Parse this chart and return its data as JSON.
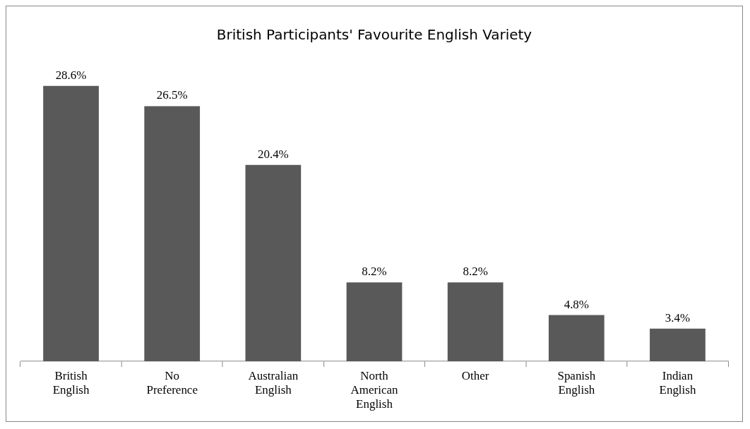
{
  "chart_data": {
    "type": "bar",
    "title": "British Participants' Favourite English Variety",
    "categories": [
      "British English",
      "No Preference",
      "Australian English",
      "North American English",
      "Other",
      "Spanish English",
      "Indian English"
    ],
    "values": [
      28.6,
      26.5,
      20.4,
      8.2,
      8.2,
      4.8,
      3.4
    ],
    "value_labels": [
      "28.6%",
      "26.5%",
      "20.4%",
      "8.2%",
      "8.2%",
      "4.8%",
      "3.4%"
    ],
    "color": "#595959",
    "grid": false,
    "legend": false
  }
}
